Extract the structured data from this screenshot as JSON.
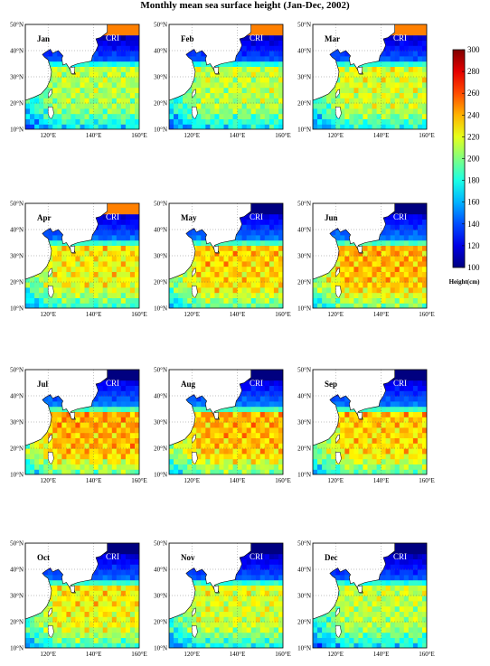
{
  "chart_data": {
    "type": "heatmap",
    "title": "Monthly mean sea surface height (Jan-Dec, 2002)",
    "panels": [
      {
        "label": "Jan",
        "annotation": "CRI"
      },
      {
        "label": "Feb",
        "annotation": "CRI"
      },
      {
        "label": "Mar",
        "annotation": "CRI"
      },
      {
        "label": "Apr",
        "annotation": "CRI"
      },
      {
        "label": "May",
        "annotation": "CRI"
      },
      {
        "label": "Jun",
        "annotation": "CRI"
      },
      {
        "label": "Jul",
        "annotation": "CRI"
      },
      {
        "label": "Aug",
        "annotation": "CRI"
      },
      {
        "label": "Sep",
        "annotation": "CRI"
      },
      {
        "label": "Oct",
        "annotation": "CRI"
      },
      {
        "label": "Nov",
        "annotation": "CRI"
      },
      {
        "label": "Dec",
        "annotation": "CRI"
      }
    ],
    "x_ticks": [
      "120°E",
      "140°E",
      "160°E"
    ],
    "y_ticks": [
      "10°N",
      "20°N",
      "30°N",
      "40°N",
      "50°N"
    ],
    "xlim": [
      110,
      160
    ],
    "ylim": [
      10,
      50
    ],
    "colorbar": {
      "label": "Height(cm)",
      "range": [
        100,
        300
      ],
      "ticks": [
        100,
        120,
        140,
        160,
        180,
        200,
        220,
        240,
        260,
        280,
        300
      ],
      "colormap": "jet"
    },
    "grid": true
  }
}
